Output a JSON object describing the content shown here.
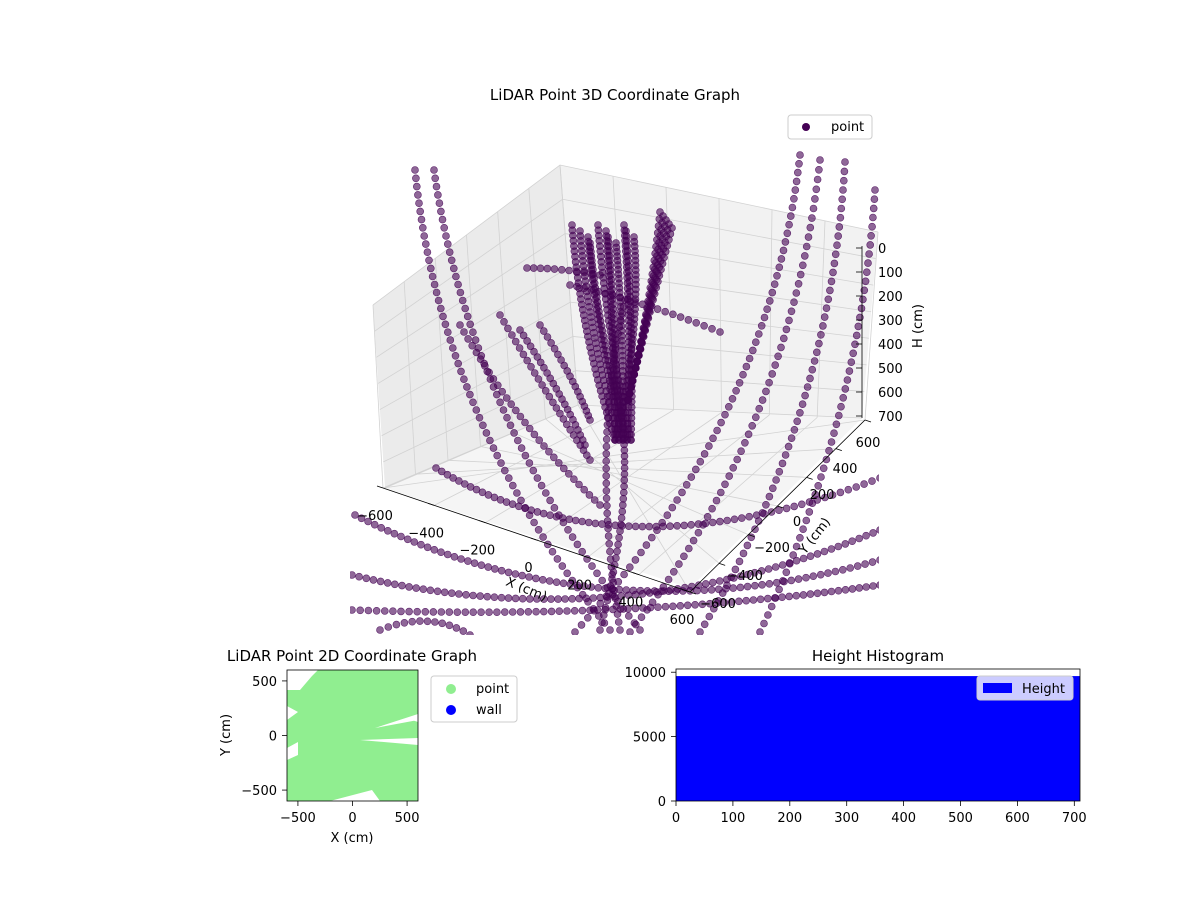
{
  "chart_data": [
    {
      "type": "scatter",
      "projection": "3d",
      "title": "LiDAR Point 3D Coordinate Graph",
      "xlabel": "X (cm)",
      "ylabel": "Y (cm)",
      "zlabel": "H (cm)",
      "xlim": [
        -600,
        600
      ],
      "ylim": [
        -600,
        600
      ],
      "zlim": [
        700,
        0
      ],
      "x_ticks": [
        "−600",
        "−400",
        "−200",
        "0",
        "200",
        "400",
        "600"
      ],
      "y_ticks": [
        "−600",
        "−400",
        "−200",
        "0",
        "200",
        "400",
        "600"
      ],
      "z_ticks": [
        "0",
        "100",
        "200",
        "300",
        "400",
        "500",
        "600",
        "700"
      ],
      "legend": {
        "position": "top-right",
        "entries": [
          {
            "label": "point",
            "color": "#440154"
          }
        ]
      },
      "grid": true,
      "series": [
        {
          "name": "point",
          "color": "#440154",
          "alpha": 0.6,
          "description": "dense rings of LiDAR returns around the sensor; central column near X 0, Y 0"
        }
      ]
    },
    {
      "type": "scatter",
      "title": "LiDAR Point 2D Coordinate Graph",
      "xlabel": "X (cm)",
      "ylabel": "Y (cm)",
      "xlim": [
        -600,
        600
      ],
      "ylim": [
        -600,
        600
      ],
      "x_ticks": [
        "−500",
        "0",
        "500"
      ],
      "y_ticks": [
        "500",
        "0",
        "−500"
      ],
      "legend": {
        "position": "outside-right",
        "entries": [
          {
            "label": "point",
            "color": "#90ee90"
          },
          {
            "label": "wall",
            "color": "#0000ff"
          }
        ]
      },
      "series": [
        {
          "name": "point",
          "color": "#90ee90"
        },
        {
          "name": "wall",
          "color": "#0000ff"
        }
      ]
    },
    {
      "type": "bar",
      "subtype": "histogram",
      "title": "Height Histogram",
      "xlim": [
        0,
        710
      ],
      "ylim": [
        0,
        10000
      ],
      "x_ticks": [
        "0",
        "100",
        "200",
        "300",
        "400",
        "500",
        "600",
        "700"
      ],
      "y_ticks": [
        "0",
        "5000",
        "10000"
      ],
      "legend": {
        "position": "top-right",
        "entries": [
          {
            "label": "Height",
            "color": "#0000ff"
          }
        ]
      },
      "series": [
        {
          "name": "Height",
          "color": "#0000ff",
          "bin_edges": [
            0,
            710
          ],
          "values": [
            9700
          ]
        }
      ]
    }
  ]
}
